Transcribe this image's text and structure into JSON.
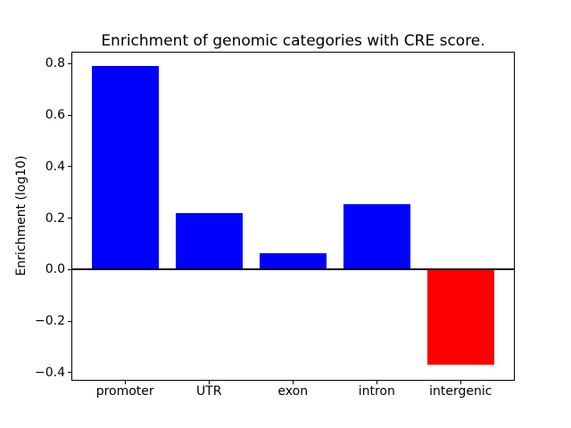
{
  "figure": {
    "background_color": "#ffffff",
    "axes_edge_color": "#000000",
    "text_color": "#000000"
  },
  "chart_data": {
    "type": "bar",
    "title": "Enrichment of genomic categories with CRE score.",
    "xlabel": "",
    "ylabel": "Enrichment (log10)",
    "categories": [
      "promoter",
      "UTR",
      "exon",
      "intron",
      "intergenic"
    ],
    "values": [
      0.79,
      0.22,
      0.065,
      0.255,
      -0.37
    ],
    "bar_colors": [
      "#0000ff",
      "#0000ff",
      "#0000ff",
      "#0000ff",
      "#ff0000"
    ],
    "positive_color": "#0000ff",
    "negative_color": "#ff0000",
    "bar_width_fraction": 0.8,
    "ylim": [
      -0.432,
      0.848
    ],
    "xlim": [
      -0.64,
      4.64
    ],
    "yticks": {
      "values": [
        -0.4,
        -0.2,
        0.0,
        0.2,
        0.4,
        0.6,
        0.8
      ],
      "labels": [
        "−0.4",
        "−0.2",
        "0.0",
        "0.2",
        "0.4",
        "0.6",
        "0.8"
      ]
    },
    "grid": false,
    "zero_line": true,
    "legend": null
  }
}
